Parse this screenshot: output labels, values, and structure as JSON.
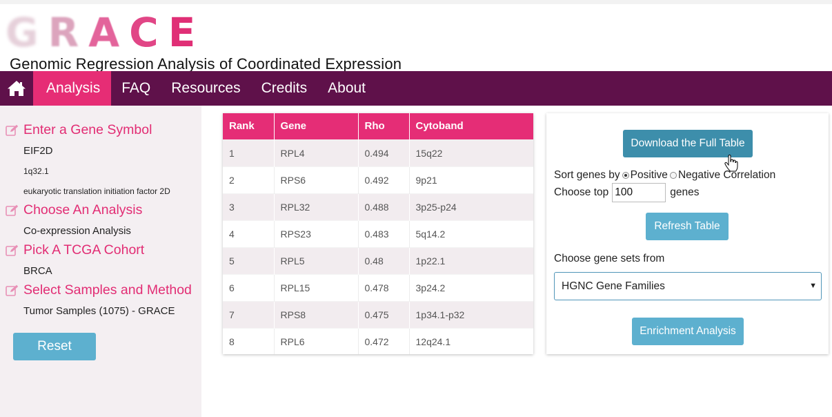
{
  "header": {
    "logo_letters": [
      "G",
      "R",
      "A",
      "C",
      "E"
    ],
    "subtitle": "Genomic Regression Analysis of Coordinated Expression"
  },
  "navbar": {
    "home_icon": "home-icon",
    "items": [
      {
        "label": "Analysis",
        "active": true
      },
      {
        "label": "FAQ",
        "active": false
      },
      {
        "label": "Resources",
        "active": false
      },
      {
        "label": "Credits",
        "active": false
      },
      {
        "label": "About",
        "active": false
      }
    ]
  },
  "sidebar": {
    "steps": [
      {
        "title": "Enter a Gene Symbol",
        "values": [
          "EIF2D",
          "1q32.1",
          "eukaryotic translation initiation factor 2D"
        ]
      },
      {
        "title": "Choose An Analysis",
        "values": [
          "Co-expression Analysis"
        ]
      },
      {
        "title": "Pick A TCGA Cohort",
        "values": [
          "BRCA"
        ]
      },
      {
        "title": "Select Samples and Method",
        "values": [
          "Tumor Samples (1075) - GRACE"
        ]
      }
    ],
    "step_icon": "edit-icon",
    "reset_label": "Reset"
  },
  "table": {
    "columns": [
      "Rank",
      "Gene",
      "Rho",
      "Cytoband"
    ],
    "rows": [
      [
        "1",
        "RPL4",
        "0.494",
        "15q22"
      ],
      [
        "2",
        "RPS6",
        "0.492",
        "9p21"
      ],
      [
        "3",
        "RPL32",
        "0.488",
        "3p25-p24"
      ],
      [
        "4",
        "RPS23",
        "0.483",
        "5q14.2"
      ],
      [
        "5",
        "RPL5",
        "0.48",
        "1p22.1"
      ],
      [
        "6",
        "RPL15",
        "0.478",
        "3p24.2"
      ],
      [
        "7",
        "RPS8",
        "0.475",
        "1p34.1-p32"
      ],
      [
        "8",
        "RPL6",
        "0.472",
        "12q24.1"
      ]
    ]
  },
  "controls": {
    "download_label": "Download the Full Table",
    "sort_prefix": "Sort genes by",
    "sort_options": [
      "Positive",
      "Negative Correlation"
    ],
    "sort_selected": "Positive",
    "choose_top_prefix": "Choose top",
    "choose_top_value": "100",
    "choose_top_suffix": "genes",
    "refresh_label": "Refresh Table",
    "genesets_label": "Choose gene sets from",
    "genesets_selected": "HGNC Gene Families",
    "enrichment_label": "Enrichment Analysis"
  },
  "colors": {
    "nav_bg": "#5f114a",
    "accent_pink": "#e62d75",
    "button_teal": "#5db0cf",
    "button_teal_dark": "#3d8eab",
    "sidebar_bg": "#f4eff2"
  }
}
